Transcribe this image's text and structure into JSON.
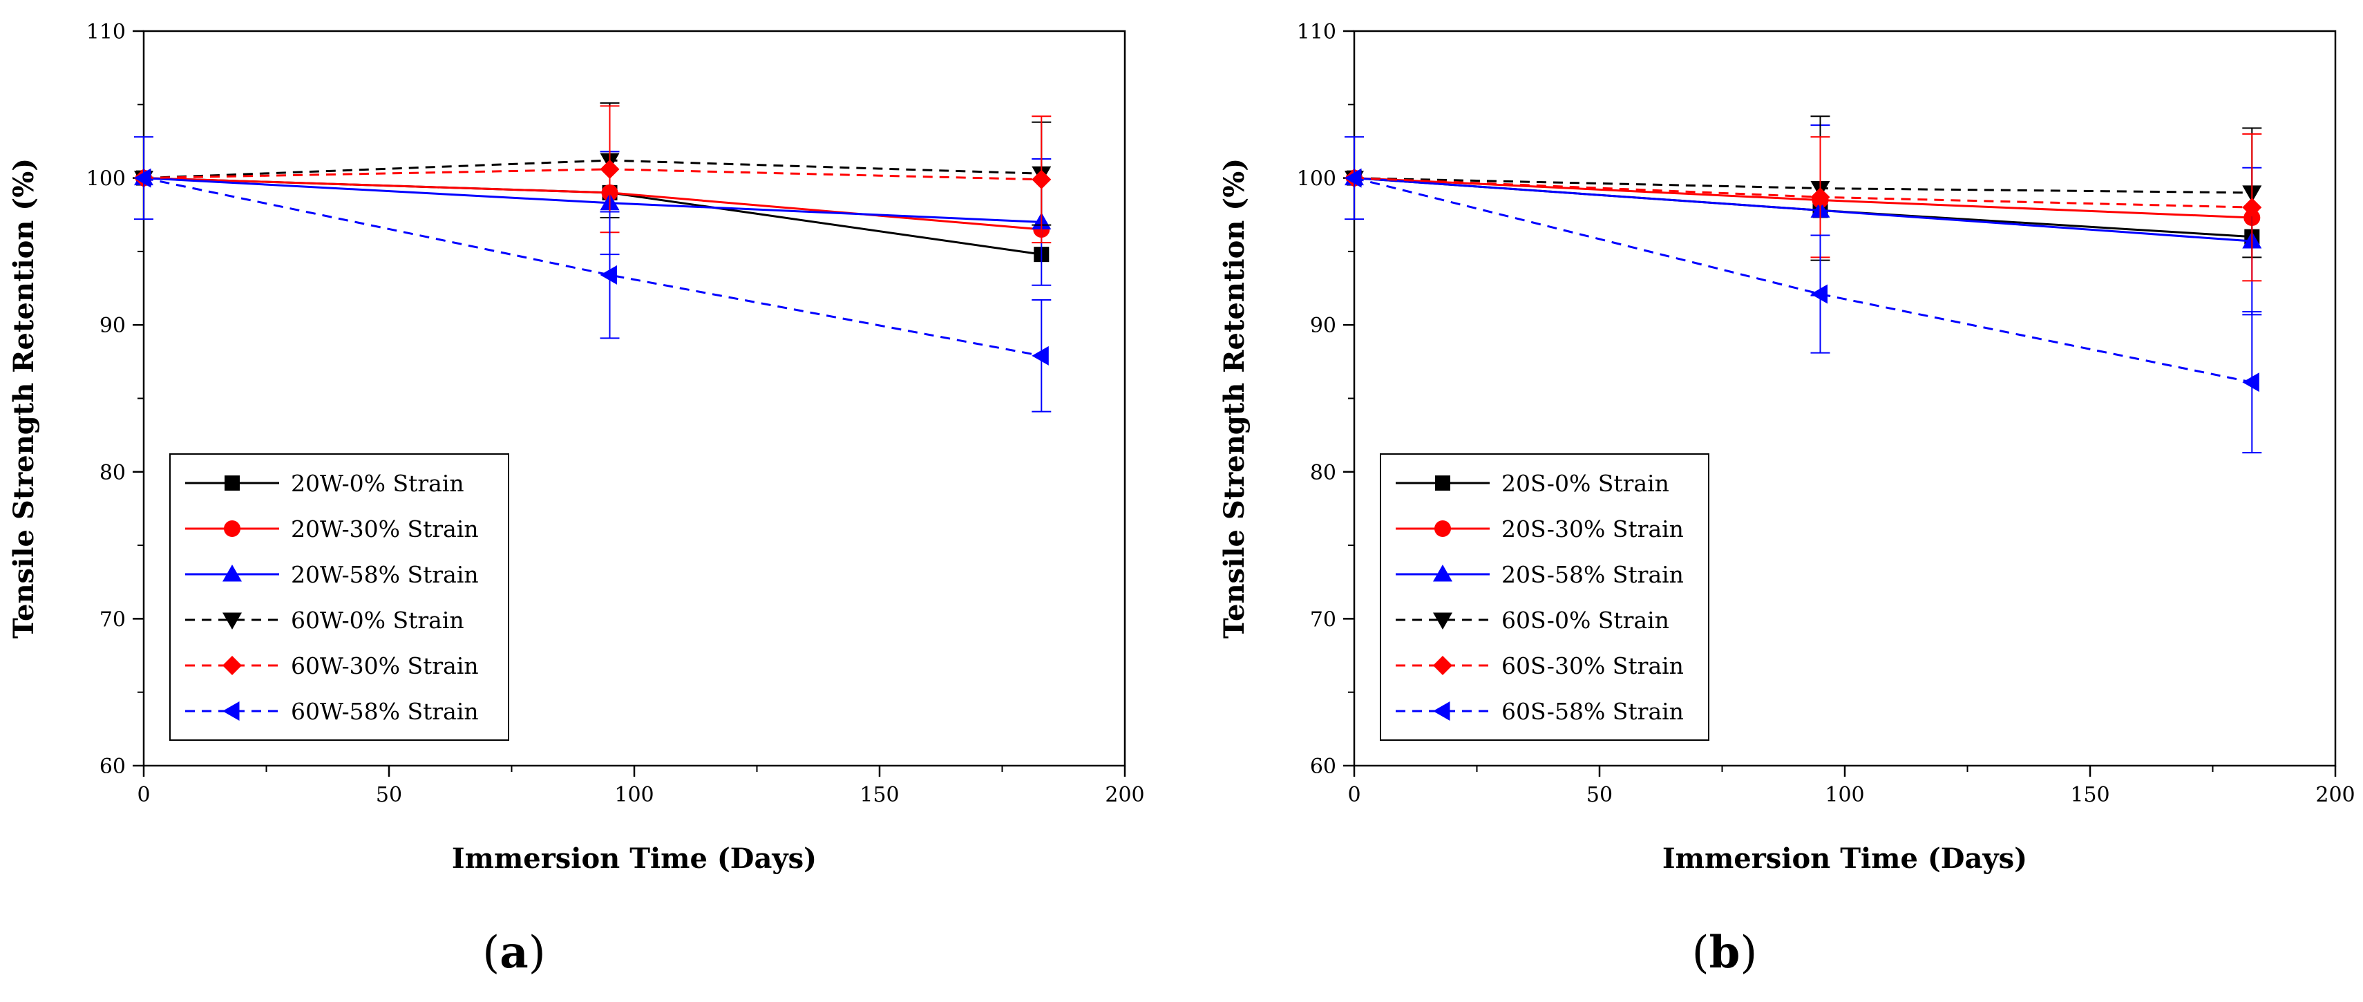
{
  "colors": {
    "black": "#000000",
    "red": "#ff0000",
    "blue": "#0000ff"
  },
  "chart_data": [
    {
      "type": "line",
      "caption_letter": "a",
      "xlabel": "Immersion Time (Days)",
      "ylabel": "Tensile Strength Retention (%)",
      "xlim": [
        0,
        200
      ],
      "ylim": [
        60,
        110
      ],
      "xticks": [
        0,
        50,
        100,
        150,
        200
      ],
      "yticks": [
        60,
        70,
        80,
        90,
        100,
        110
      ],
      "grid": false,
      "legend_position": "bottom-left",
      "x": [
        0,
        95,
        183
      ],
      "series": [
        {
          "name": "20W-0% Strain",
          "color": "black",
          "dash": "solid",
          "marker": "square",
          "values": [
            100,
            99.0,
            94.8
          ],
          "errors": [
            0,
            0,
            0
          ]
        },
        {
          "name": "20W-30% Strain",
          "color": "red",
          "dash": "solid",
          "marker": "circle",
          "values": [
            100,
            99.0,
            96.5
          ],
          "errors": [
            0,
            0,
            0
          ]
        },
        {
          "name": "20W-58% Strain",
          "color": "blue",
          "dash": "solid",
          "marker": "triangle-up",
          "values": [
            100,
            98.3,
            97.0
          ],
          "errors": [
            0,
            3.5,
            4.3
          ]
        },
        {
          "name": "60W-0% Strain",
          "color": "black",
          "dash": "dashed",
          "marker": "triangle-down",
          "values": [
            100,
            101.2,
            100.3
          ],
          "errors": [
            0,
            3.9,
            3.5
          ]
        },
        {
          "name": "60W-30% Strain",
          "color": "red",
          "dash": "dashed",
          "marker": "diamond",
          "values": [
            100,
            100.6,
            99.9
          ],
          "errors": [
            0,
            4.3,
            4.3
          ]
        },
        {
          "name": "60W-58% Strain",
          "color": "blue",
          "dash": "dashed",
          "marker": "triangle-left",
          "values": [
            100,
            93.4,
            87.9
          ],
          "errors": [
            2.8,
            4.3,
            3.8
          ]
        }
      ]
    },
    {
      "type": "line",
      "caption_letter": "b",
      "xlabel": "Immersion Time (Days)",
      "ylabel": "Tensile Strength Retention (%)",
      "xlim": [
        0,
        200
      ],
      "ylim": [
        60,
        110
      ],
      "xticks": [
        0,
        50,
        100,
        150,
        200
      ],
      "yticks": [
        60,
        70,
        80,
        90,
        100,
        110
      ],
      "grid": false,
      "legend_position": "bottom-left",
      "x": [
        0,
        95,
        183
      ],
      "series": [
        {
          "name": "20S-0% Strain",
          "color": "black",
          "dash": "solid",
          "marker": "square",
          "values": [
            100,
            97.8,
            96.0
          ],
          "errors": [
            0,
            0,
            0
          ]
        },
        {
          "name": "20S-30% Strain",
          "color": "red",
          "dash": "solid",
          "marker": "circle",
          "values": [
            100,
            98.5,
            97.3
          ],
          "errors": [
            0,
            0,
            0
          ]
        },
        {
          "name": "20S-58% Strain",
          "color": "blue",
          "dash": "solid",
          "marker": "triangle-up",
          "values": [
            100,
            97.8,
            95.7
          ],
          "errors": [
            0,
            5.8,
            5.0
          ]
        },
        {
          "name": "60S-0% Strain",
          "color": "black",
          "dash": "dashed",
          "marker": "triangle-down",
          "values": [
            100,
            99.3,
            99.0
          ],
          "errors": [
            0,
            4.9,
            4.4
          ]
        },
        {
          "name": "60S-30% Strain",
          "color": "red",
          "dash": "dashed",
          "marker": "diamond",
          "values": [
            100,
            98.7,
            98.0
          ],
          "errors": [
            0,
            4.1,
            5.0
          ]
        },
        {
          "name": "60S-58% Strain",
          "color": "blue",
          "dash": "dashed",
          "marker": "triangle-left",
          "values": [
            100,
            92.1,
            86.1
          ],
          "errors": [
            2.8,
            4.0,
            4.8
          ]
        }
      ]
    }
  ]
}
